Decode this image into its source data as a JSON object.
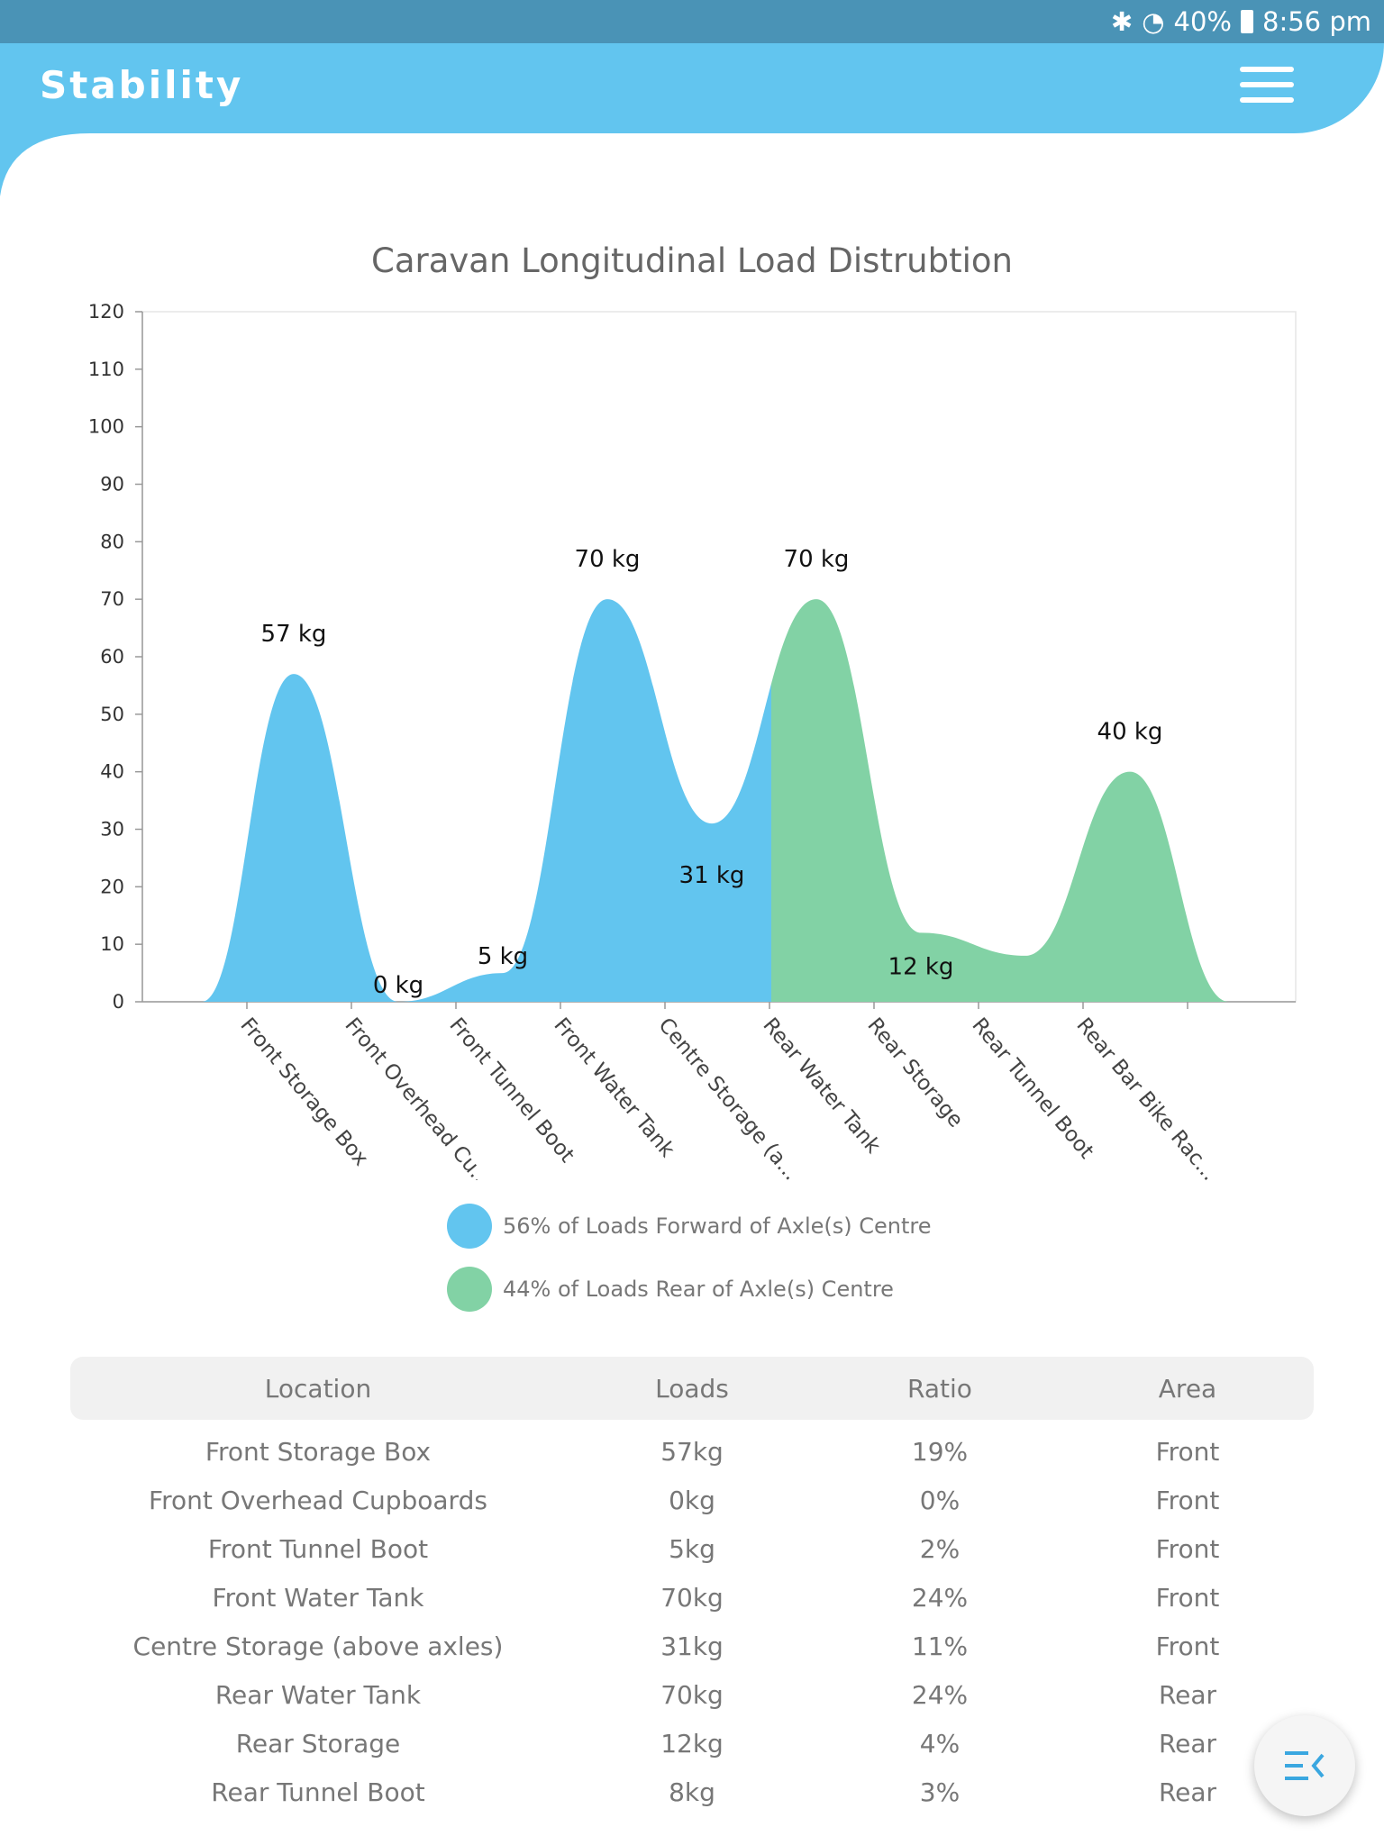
{
  "status": {
    "battery": "40%",
    "time": "8:56 pm"
  },
  "header": {
    "title": "Stability"
  },
  "chart_data": {
    "type": "area",
    "title": "Caravan Longitudinal Load Distrubtion",
    "categories": [
      "Front Storage Box",
      "Front Overhead Cu...",
      "Front Tunnel Boot",
      "Front Water Tank",
      "Centre Storage (a...",
      "Rear Water Tank",
      "Rear Storage",
      "Rear Tunnel Boot",
      "Rear Bar Bike Rac..."
    ],
    "values": [
      57,
      0,
      5,
      70,
      31,
      70,
      12,
      8,
      40
    ],
    "data_labels": [
      "57 kg",
      "0 kg",
      "5 kg",
      "70 kg",
      "31 kg",
      "70 kg",
      "12 kg",
      "",
      "40 kg"
    ],
    "yticks": [
      "0",
      "10",
      "20",
      "30",
      "40",
      "50",
      "60",
      "70",
      "80",
      "90",
      "100",
      "110",
      "120"
    ],
    "ylim": [
      0,
      120
    ],
    "colors": {
      "forward": "#62c5ef",
      "rear": "#82d2a5"
    },
    "legend": [
      {
        "label": "56% of Loads Forward of Axle(s) Centre",
        "color": "#62c5ef"
      },
      {
        "label": "44% of Loads Rear of Axle(s) Centre",
        "color": "#82d2a5"
      }
    ]
  },
  "table": {
    "headers": [
      "Location",
      "Loads",
      "Ratio",
      "Area"
    ],
    "rows": [
      [
        "Front Storage Box",
        "57kg",
        "19%",
        "Front"
      ],
      [
        "Front Overhead Cupboards",
        "0kg",
        "0%",
        "Front"
      ],
      [
        "Front Tunnel Boot",
        "5kg",
        "2%",
        "Front"
      ],
      [
        "Front Water Tank",
        "70kg",
        "24%",
        "Front"
      ],
      [
        "Centre Storage (above axles)",
        "31kg",
        "11%",
        "Front"
      ],
      [
        "Rear Water Tank",
        "70kg",
        "24%",
        "Rear"
      ],
      [
        "Rear Storage",
        "12kg",
        "4%",
        "Rear"
      ],
      [
        "Rear Tunnel Boot",
        "8kg",
        "3%",
        "Rear"
      ]
    ]
  }
}
